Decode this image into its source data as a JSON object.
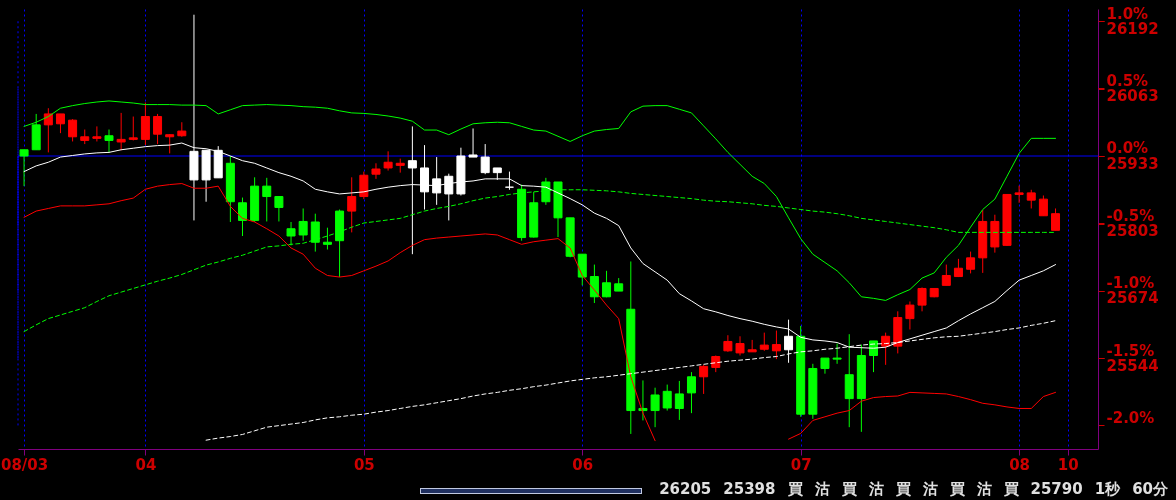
{
  "chart_data": {
    "type": "candlestick",
    "categories": [
      "08/03",
      null,
      null,
      null,
      null,
      null,
      null,
      null,
      null,
      null,
      "04",
      null,
      null,
      null,
      null,
      null,
      null,
      null,
      null,
      null,
      null,
      null,
      null,
      null,
      null,
      null,
      null,
      null,
      "05",
      null,
      null,
      null,
      null,
      null,
      null,
      null,
      null,
      null,
      null,
      null,
      null,
      null,
      null,
      null,
      null,
      null,
      "06",
      null,
      null,
      null,
      null,
      null,
      null,
      null,
      null,
      null,
      null,
      null,
      null,
      null,
      null,
      null,
      null,
      null,
      "07",
      null,
      null,
      null,
      null,
      null,
      null,
      null,
      null,
      null,
      null,
      null,
      null,
      null,
      null,
      null,
      null,
      null,
      "08",
      null,
      null,
      null,
      "10",
      null,
      null
    ],
    "ohlc": [
      [
        25945,
        25945,
        25875,
        25933
      ],
      [
        25993,
        26014,
        25945,
        25945
      ],
      [
        25993,
        26025,
        25940,
        26014
      ],
      [
        25995,
        26014,
        25977,
        26014
      ],
      [
        25970,
        26004,
        25961,
        26002
      ],
      [
        25963,
        25984,
        25956,
        25970
      ],
      [
        25967,
        25990,
        25961,
        25970
      ],
      [
        25972,
        25984,
        25940,
        25963
      ],
      [
        25960,
        26016,
        25944,
        25965
      ],
      [
        25965,
        26009,
        25963,
        25968
      ],
      [
        25965,
        26036,
        25954,
        26009
      ],
      [
        25975,
        26014,
        25956,
        26009
      ],
      [
        25970,
        25975,
        25938,
        25974
      ],
      [
        25972,
        25998,
        25970,
        25981
      ],
      [
        25887,
        26205,
        25809,
        25942
      ],
      [
        25887,
        25944,
        25845,
        25944
      ],
      [
        25891,
        25952,
        25891,
        25944
      ],
      [
        25919,
        25933,
        25806,
        25845
      ],
      [
        25843,
        25853,
        25779,
        25809
      ],
      [
        25875,
        25892,
        25806,
        25809
      ],
      [
        25875,
        25891,
        25807,
        25855
      ],
      [
        25855,
        25855,
        25807,
        25834
      ],
      [
        25793,
        25806,
        25761,
        25779
      ],
      [
        25807,
        25832,
        25770,
        25781
      ],
      [
        25806,
        25822,
        25749,
        25767
      ],
      [
        25767,
        25795,
        25753,
        25763
      ],
      [
        25827,
        25830,
        25700,
        25770
      ],
      [
        25827,
        25892,
        25786,
        25855
      ],
      [
        25855,
        25903,
        25850,
        25896
      ],
      [
        25898,
        25919,
        25889,
        25908
      ],
      [
        25910,
        25942,
        25905,
        25921
      ],
      [
        25915,
        25928,
        25901,
        25919
      ],
      [
        25910,
        25990,
        25744,
        25924
      ],
      [
        25864,
        25954,
        25830,
        25910
      ],
      [
        25862,
        25931,
        25839,
        25889
      ],
      [
        25860,
        25899,
        25809,
        25894
      ],
      [
        25860,
        25949,
        25857,
        25933
      ],
      [
        25931,
        25986,
        25931,
        25935
      ],
      [
        25901,
        25956,
        25898,
        25931
      ],
      [
        25901,
        25910,
        25887,
        25910
      ],
      [
        25873,
        25903,
        25868,
        25873
      ],
      [
        25869,
        25878,
        25770,
        25776
      ],
      [
        25843,
        25864,
        25776,
        25777
      ],
      [
        25883,
        25891,
        25839,
        25845
      ],
      [
        25883,
        25883,
        25777,
        25814
      ],
      [
        25814,
        25814,
        25738,
        25740
      ],
      [
        25744,
        25744,
        25684,
        25700
      ],
      [
        25701,
        25724,
        25650,
        25662
      ],
      [
        25689,
        25712,
        25661,
        25662
      ],
      [
        25687,
        25698,
        25673,
        25673
      ],
      [
        25638,
        25730,
        25398,
        25443
      ],
      [
        25447,
        25501,
        25424,
        25443
      ],
      [
        25473,
        25487,
        25411,
        25443
      ],
      [
        25480,
        25493,
        25443,
        25448
      ],
      [
        25475,
        25500,
        25425,
        25447
      ],
      [
        25508,
        25517,
        25438,
        25477
      ],
      [
        25508,
        25531,
        25475,
        25528
      ],
      [
        25526,
        25549,
        25517,
        25547
      ],
      [
        25558,
        25588,
        25556,
        25576
      ],
      [
        25554,
        25586,
        25549,
        25572
      ],
      [
        25556,
        25579,
        25556,
        25560
      ],
      [
        25561,
        25593,
        25558,
        25569
      ],
      [
        25558,
        25597,
        25542,
        25570
      ],
      [
        25560,
        25618,
        25535,
        25586
      ],
      [
        25586,
        25606,
        25431,
        25436
      ],
      [
        25524,
        25533,
        25427,
        25436
      ],
      [
        25544,
        25544,
        25514,
        25524
      ],
      [
        25544,
        25572,
        25533,
        25542
      ],
      [
        25512,
        25590,
        25411,
        25466
      ],
      [
        25549,
        25570,
        25402,
        25466
      ],
      [
        25577,
        25577,
        25517,
        25549
      ],
      [
        25567,
        25593,
        25531,
        25586
      ],
      [
        25567,
        25634,
        25553,
        25622
      ],
      [
        25620,
        25653,
        25599,
        25646
      ],
      [
        25646,
        25680,
        25634,
        25678
      ],
      [
        25662,
        25678,
        25661,
        25678
      ],
      [
        25684,
        25724,
        25684,
        25703
      ],
      [
        25701,
        25735,
        25700,
        25717
      ],
      [
        25715,
        25749,
        25707,
        25737
      ],
      [
        25737,
        25829,
        25708,
        25807
      ],
      [
        25758,
        25820,
        25747,
        25807
      ],
      [
        25761,
        25859,
        25760,
        25859
      ],
      [
        25859,
        25876,
        25843,
        25862
      ],
      [
        25848,
        25868,
        25832,
        25862
      ],
      [
        25818,
        25857,
        25818,
        25850
      ],
      [
        25790,
        25832,
        25790,
        25822
      ],
      null,
      null,
      null
    ],
    "colors": [
      "#00ff00",
      "#00ff00",
      "#ff0000",
      "#ff0000",
      "#ff0000",
      "#ff0000",
      "#ff0000",
      "#00ff00",
      "#ff0000",
      "#ff0000",
      "#ff0000",
      "#ff0000",
      "#ff0000",
      "#ff0000",
      "#ffffff",
      "#ffffff",
      "#ffffff",
      "#00ff00",
      "#00ff00",
      "#00ff00",
      "#00ff00",
      "#00ff00",
      "#00ff00",
      "#00ff00",
      "#00ff00",
      "#00ff00",
      "#00ff00",
      "#ff0000",
      "#ff0000",
      "#ff0000",
      "#ff0000",
      "#ff0000",
      "#ffffff",
      "#ffffff",
      "#ffffff",
      "#ffffff",
      "#ffffff",
      "#ffffff",
      "#ffffff",
      "#ffffff",
      "#ffffff",
      "#00ff00",
      "#00ff00",
      "#00ff00",
      "#00ff00",
      "#00ff00",
      "#00ff00",
      "#00ff00",
      "#00ff00",
      "#00ff00",
      "#00ff00",
      "#00ff00",
      "#00ff00",
      "#00ff00",
      "#00ff00",
      "#00ff00",
      "#ff0000",
      "#ff0000",
      "#ff0000",
      "#ff0000",
      "#ff0000",
      "#ff0000",
      "#ff0000",
      "#ffffff",
      "#00ff00",
      "#00ff00",
      "#00ff00",
      "#00ff00",
      "#00ff00",
      "#00ff00",
      "#00ff00",
      "#ff0000",
      "#ff0000",
      "#ff0000",
      "#ff0000",
      "#ff0000",
      "#ff0000",
      "#ff0000",
      "#ff0000",
      "#ff0000",
      "#ff0000",
      "#ff0000",
      "#ff0000",
      "#ff0000",
      "#ff0000",
      "#ff0000",
      null,
      null,
      null
    ],
    "series": [
      {
        "type": "line",
        "color": "#00ff00",
        "line_style": "solid",
        "values": [
          25990,
          25998,
          26009,
          26025,
          26030,
          26034,
          26037,
          26039,
          26037,
          26035,
          26032,
          26032,
          26032,
          26031,
          26031,
          26030,
          26014,
          26022,
          26030,
          26031,
          26032,
          26031,
          26030,
          26028,
          26027,
          26025,
          26020,
          26016,
          26015,
          26013,
          26010,
          26006,
          26000,
          25983,
          25983,
          25974,
          25985,
          25995,
          25997,
          25998,
          25997,
          25990,
          25983,
          25981,
          25971,
          25961,
          25972,
          25981,
          25984,
          25986,
          26018,
          26029,
          26030,
          26030,
          26023,
          26016,
          25991,
          25966,
          25940,
          25917,
          25894,
          25880,
          25855,
          25814,
          25774,
          25744,
          25728,
          25712,
          25689,
          25662,
          25659,
          25655,
          25666,
          25676,
          25698,
          25708,
          25738,
          25761,
          25796,
          25830,
          25850,
          25894,
          25938,
          25967,
          25967,
          25967,
          null,
          null,
          null
        ]
      },
      {
        "type": "line",
        "color": "#ffffff",
        "line_style": "solid",
        "values": [
          25903,
          25914,
          25921,
          25931,
          25934,
          25937,
          25939,
          25940,
          25945,
          25948,
          25951,
          25953,
          25954,
          25958,
          25949,
          25947,
          25942,
          25933,
          25924,
          25919,
          25910,
          25901,
          25894,
          25885,
          25869,
          25864,
          25860,
          25862,
          25864,
          25869,
          25873,
          25876,
          25878,
          25877,
          25876,
          25880,
          25883,
          25885,
          25889,
          25889,
          25889,
          25876,
          25875,
          25873,
          25862,
          25851,
          25839,
          25823,
          25813,
          25799,
          25756,
          25726,
          25710,
          25694,
          25668,
          25654,
          25639,
          25633,
          25626,
          25620,
          25615,
          25609,
          25604,
          25600,
          25584,
          25579,
          25577,
          25574,
          25565,
          25564,
          25563,
          25565,
          25574,
          25581,
          25588,
          25595,
          25602,
          25616,
          25629,
          25641,
          25653,
          25674,
          25694,
          25703,
          25712,
          25724,
          null,
          null,
          null
        ]
      },
      {
        "type": "line",
        "color": "#ff0000",
        "line_style": "solid",
        "values": [
          25815,
          25827,
          25832,
          25837,
          25837,
          25837,
          25839,
          25841,
          25847,
          25852,
          25869,
          25875,
          25878,
          25880,
          25871,
          25871,
          25875,
          25836,
          25813,
          25806,
          25793,
          25779,
          25756,
          25744,
          25717,
          25703,
          25700,
          25703,
          25712,
          25721,
          25731,
          25747,
          25761,
          25772,
          25775,
          25777,
          25779,
          25781,
          25783,
          25781,
          25772,
          25763,
          25768,
          25771,
          25774,
          25756,
          25703,
          25675,
          25646,
          25620,
          25508,
          25438,
          25385,
          null,
          null,
          null,
          null,
          null,
          null,
          null,
          null,
          null,
          null,
          25388,
          25399,
          25424,
          25431,
          25438,
          25443,
          25461,
          25468,
          25470,
          25471,
          25478,
          25477,
          25476,
          25475,
          25470,
          25464,
          25457,
          25454,
          25450,
          25447,
          25447,
          25470,
          25478,
          null,
          null,
          null
        ]
      },
      {
        "type": "line",
        "color": "#00ff00",
        "line_style": "dashed",
        "values": [
          25595,
          25608,
          25620,
          25627,
          25634,
          25641,
          25653,
          25664,
          25671,
          25678,
          25685,
          25692,
          25698,
          25705,
          25714,
          25723,
          25729,
          25736,
          25742,
          25750,
          25758,
          25760,
          25763,
          25765,
          25772,
          25779,
          25787,
          25796,
          25804,
          25807,
          25810,
          25813,
          25820,
          25827,
          25832,
          25836,
          25841,
          25847,
          25852,
          25855,
          25859,
          25862,
          25864,
          25866,
          25868,
          25868,
          25868,
          25867,
          25866,
          25864,
          25861,
          25859,
          25857,
          25855,
          25853,
          25851,
          25848,
          25846,
          25845,
          25843,
          25841,
          25838,
          25836,
          25833,
          25830,
          25827,
          25825,
          25822,
          25818,
          25813,
          25810,
          25807,
          25804,
          25801,
          25798,
          25795,
          25791,
          25786,
          25786,
          25786,
          25786,
          25786,
          25786,
          25786,
          25786,
          25786,
          null,
          null,
          null
        ]
      },
      {
        "type": "line",
        "color": "#ffffff",
        "line_style": "dashed",
        "values": [
          null,
          null,
          null,
          null,
          null,
          null,
          null,
          null,
          null,
          null,
          null,
          null,
          null,
          null,
          null,
          25386,
          25390,
          25393,
          25397,
          25404,
          25411,
          25414,
          25417,
          25420,
          25425,
          25429,
          25431,
          25434,
          25436,
          25440,
          25443,
          25447,
          25451,
          25454,
          25458,
          25462,
          25466,
          25471,
          25475,
          25478,
          25482,
          25485,
          25489,
          25492,
          25496,
          25500,
          25503,
          25506,
          25508,
          25511,
          25514,
          25517,
          25520,
          25523,
          25526,
          25529,
          25532,
          25535,
          25538,
          25540,
          25542,
          25545,
          25547,
          25552,
          25556,
          25558,
          25561,
          25563,
          25566,
          25569,
          25571,
          25572,
          25574,
          25577,
          25580,
          25583,
          25585,
          25586,
          25589,
          25592,
          25595,
          25599,
          25602,
          25607,
          25611,
          25616,
          null,
          null,
          null
        ]
      }
    ],
    "ylim": [
      25369,
      26216
    ],
    "yticks": [
      26192,
      26063,
      25933,
      25803,
      25674,
      25544
    ],
    "y2lim": [
      -2.175,
      1.091
    ],
    "y2ticks": [
      {
        "value": 1,
        "label": "1.0%"
      },
      {
        "value": 0.5,
        "label": "0.5%"
      },
      {
        "value": 0,
        "label": "0.0%"
      },
      {
        "value": -0.5,
        "label": "-0.5%"
      },
      {
        "value": -1,
        "label": "-1.0%"
      },
      {
        "value": -1.5,
        "label": "-1.5%"
      },
      {
        "value": -2,
        "label": "-2.0%"
      }
    ],
    "ref_lines": [
      {
        "axis": "y",
        "value": 25933,
        "color": "#0000ff"
      }
    ],
    "grid": true,
    "annotations": [
      "26205",
      "25398",
      "買",
      "沽",
      "買",
      "沽",
      "買",
      "沽",
      "買",
      "沽",
      "買",
      "25790",
      "1秒",
      "60分"
    ]
  }
}
